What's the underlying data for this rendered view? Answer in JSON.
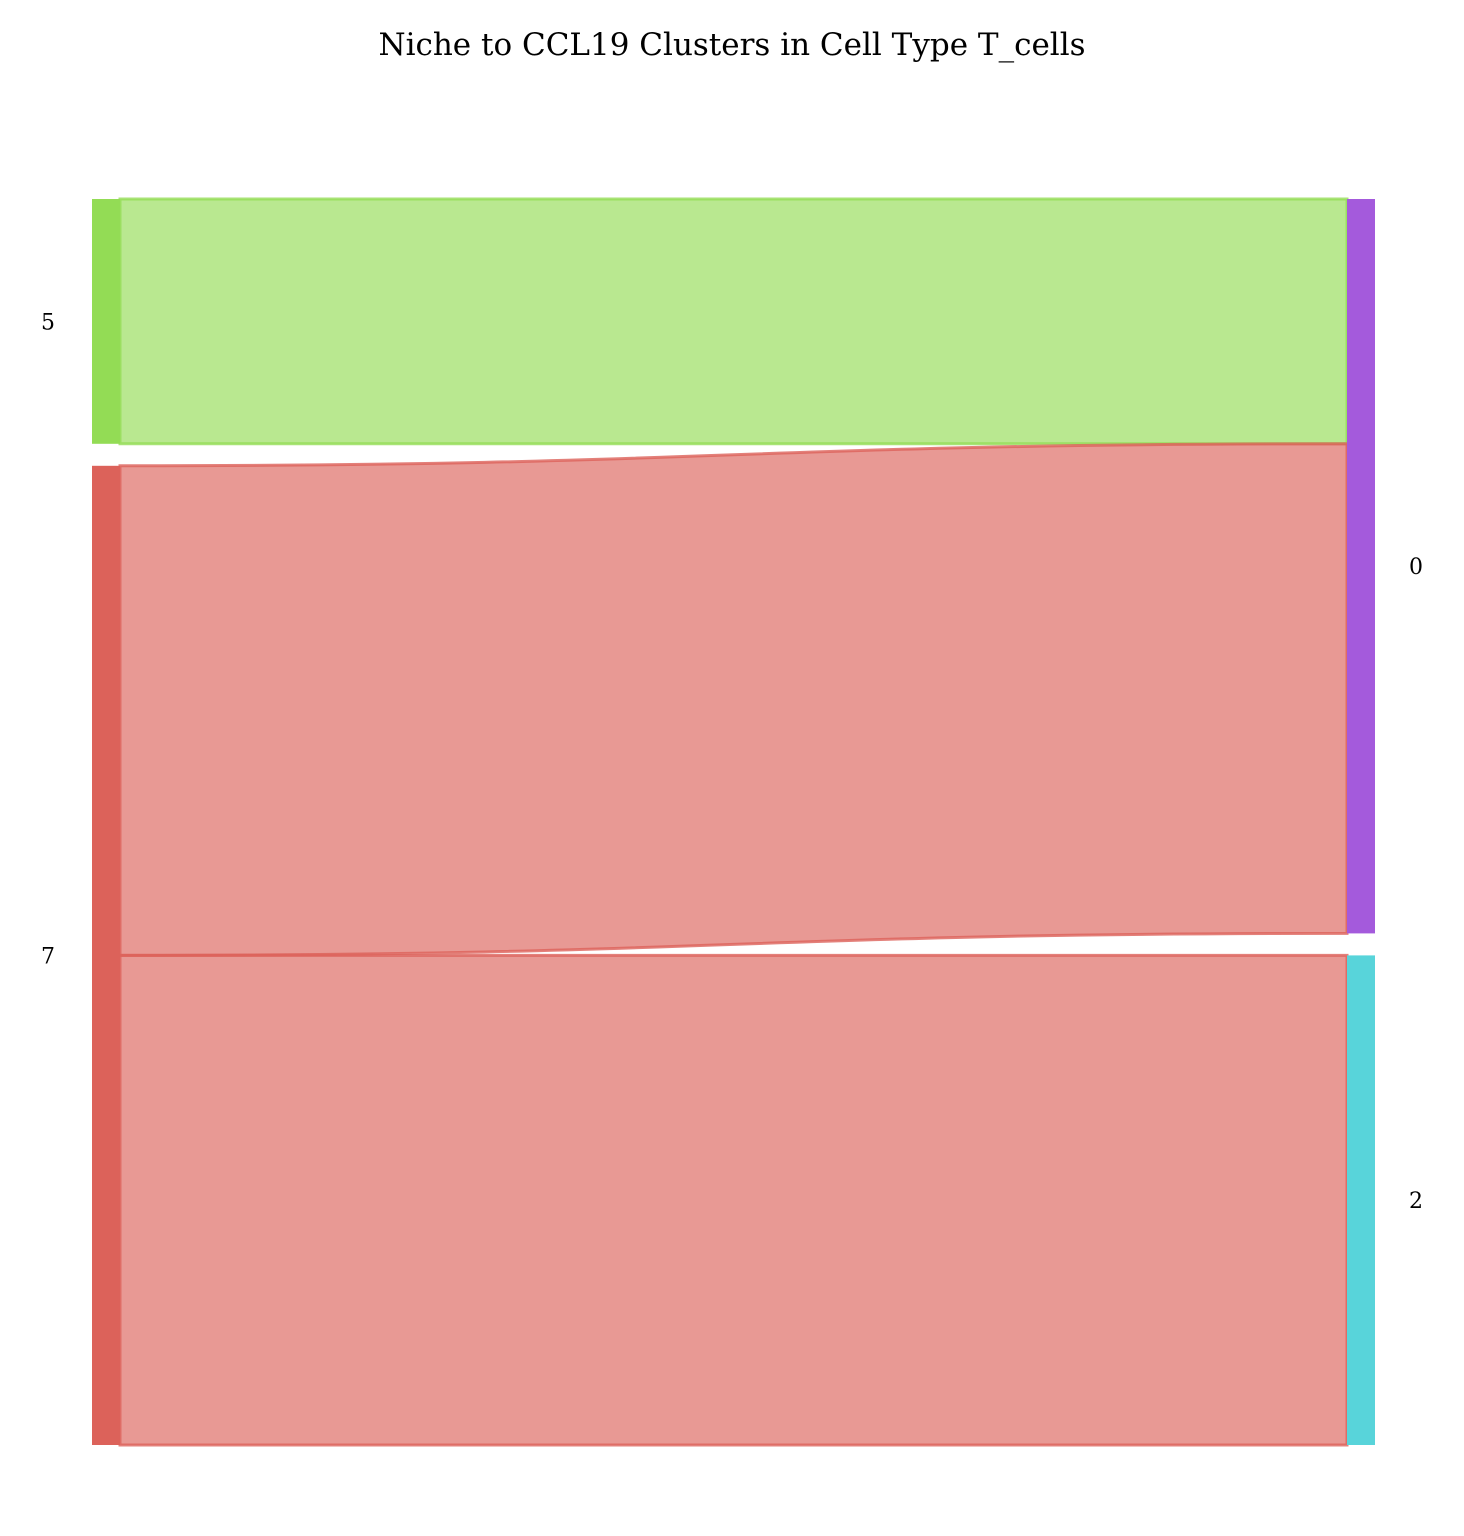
{
  "chart_data": {
    "type": "sankey",
    "title": "Niche to CCL19 Clusters in Cell Type T_cells",
    "source_nodes": [
      {
        "id": "5",
        "label": "5",
        "color": "#93dc55"
      },
      {
        "id": "7",
        "label": "7",
        "color": "#dc625a"
      }
    ],
    "target_nodes": [
      {
        "id": "0",
        "label": "0",
        "color": "#a45adc"
      },
      {
        "id": "2",
        "label": "2",
        "color": "#58d4da"
      }
    ],
    "links": [
      {
        "source": "5",
        "target": "0",
        "value": 1,
        "color": "#93dc55"
      },
      {
        "source": "7",
        "target": "0",
        "value": 2,
        "color": "#dc625a"
      },
      {
        "source": "7",
        "target": "2",
        "value": 2,
        "color": "#dc625a"
      }
    ]
  }
}
